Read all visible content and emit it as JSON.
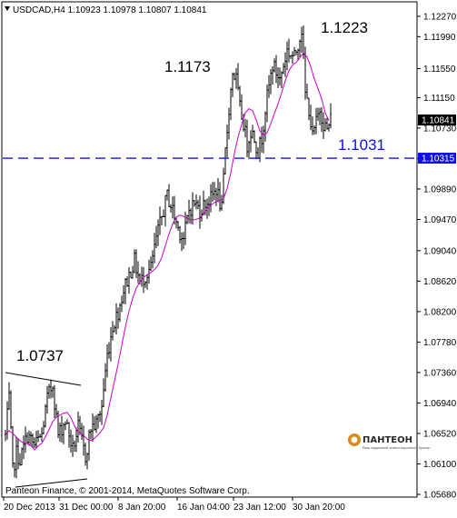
{
  "chart_data": {
    "type": "candlestick",
    "header": {
      "symbol": "USDCAD,H4",
      "values": [
        "1.10923",
        "1.10978",
        "1.10807",
        "1.10841"
      ]
    },
    "ylim": [
      1.0566,
      1.1258
    ],
    "yticks": [
      "1.12270",
      "1.11990",
      "1.11550",
      "1.11150",
      "1.10730",
      "1.10310",
      "1.09890",
      "1.09470",
      "1.09040",
      "1.08620",
      "1.08200",
      "1.07780",
      "1.07360",
      "1.06940",
      "1.06520",
      "1.06100",
      "1.05680"
    ],
    "xticks": [
      "20 Dec 2013",
      "31 Dec 00:00",
      "8 Jan 20:00",
      "16 Jan 04:00",
      "23 Jan 12:00",
      "30 Jan 20:00"
    ],
    "current_price": "1.10841",
    "level_tag": "1.10315",
    "horizontal_level": {
      "value": 1.10315,
      "label": "1.1031",
      "color": "#1010dd",
      "style": "dashed"
    },
    "annotations": [
      {
        "text": "1.0737",
        "value": 1.0737
      },
      {
        "text": "1.1173",
        "value": 1.1173
      },
      {
        "text": "1.1223",
        "value": 1.1223
      }
    ],
    "moving_average_color": "#cc00cc",
    "bars_color": "#000000",
    "copyright": "Panteon Finance, © 2001-2014, MetaQuotes Software Corp.",
    "logo": {
      "name": "ПАНТЕОН",
      "tagline": "Ваш надежный инвестиционный брокер"
    },
    "grid": false
  }
}
